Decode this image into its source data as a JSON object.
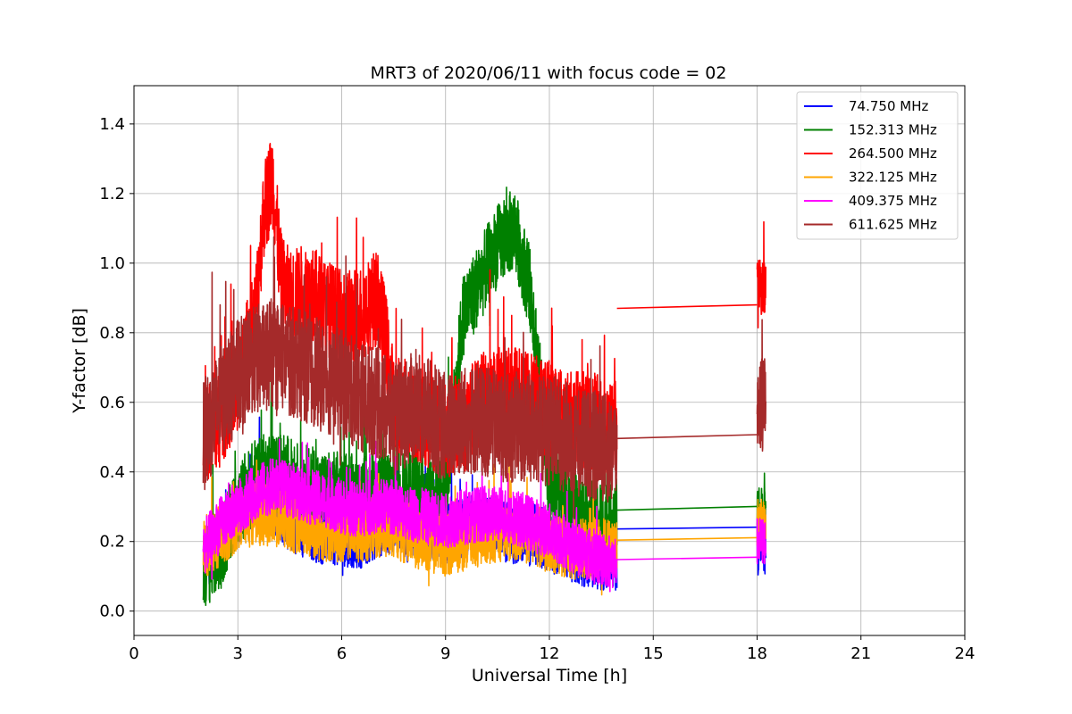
{
  "chart_data": {
    "type": "line",
    "title": "MRT3 of 2020/06/11 with focus code = 02",
    "xlabel": "Universal Time [h]",
    "ylabel": "Y-factor [dB]",
    "xlim": [
      0,
      24
    ],
    "ylim": [
      -0.07,
      1.51
    ],
    "xticks": [
      0,
      3,
      6,
      9,
      12,
      15,
      18,
      21,
      24
    ],
    "yticks": [
      0.0,
      0.2,
      0.4,
      0.6,
      0.8,
      1.0,
      1.2,
      1.4
    ],
    "xtick_labels": [
      "0",
      "3",
      "6",
      "9",
      "12",
      "15",
      "18",
      "21",
      "24"
    ],
    "ytick_labels": [
      "0.0",
      "0.2",
      "0.4",
      "0.6",
      "0.8",
      "1.0",
      "1.2",
      "1.4"
    ],
    "grid": true,
    "legend_position": "top-right",
    "series": [
      {
        "name": " 74.750 MHz",
        "color": "#0000ff",
        "segments": [
          {
            "x_start": 2.0,
            "x_end": 13.95,
            "points": [
              [
                2.0,
                0.15
              ],
              [
                2.5,
                0.2
              ],
              [
                3,
                0.28
              ],
              [
                3.5,
                0.34
              ],
              [
                4,
                0.31
              ],
              [
                4.5,
                0.26
              ],
              [
                5,
                0.24
              ],
              [
                5.5,
                0.22
              ],
              [
                6,
                0.22
              ],
              [
                6.5,
                0.21
              ],
              [
                7,
                0.24
              ],
              [
                7.5,
                0.26
              ],
              [
                8,
                0.25
              ],
              [
                8.5,
                0.23
              ],
              [
                9,
                0.22
              ],
              [
                9.5,
                0.24
              ],
              [
                10,
                0.25
              ],
              [
                10.5,
                0.24
              ],
              [
                11,
                0.22
              ],
              [
                11.5,
                0.22
              ],
              [
                12,
                0.2
              ],
              [
                12.5,
                0.18
              ],
              [
                13,
                0.16
              ],
              [
                13.5,
                0.15
              ],
              [
                13.95,
                0.15
              ]
            ],
            "noise": 0.09
          },
          {
            "x_start": 13.95,
            "x_end": 18.0,
            "points": [
              [
                13.95,
                0.236
              ],
              [
                18.0,
                0.241
              ]
            ],
            "noise": 0
          },
          {
            "x_start": 18.0,
            "x_end": 18.25,
            "points": [
              [
                18.0,
                0.2
              ],
              [
                18.25,
                0.2
              ]
            ],
            "noise": 0.1
          }
        ]
      },
      {
        "name": "152.313 MHz",
        "color": "#008000",
        "segments": [
          {
            "x_start": 2.0,
            "x_end": 13.95,
            "points": [
              [
                2.0,
                0.12
              ],
              [
                2.5,
                0.18
              ],
              [
                3,
                0.3
              ],
              [
                3.5,
                0.38
              ],
              [
                4,
                0.4
              ],
              [
                4.5,
                0.38
              ],
              [
                5,
                0.36
              ],
              [
                5.5,
                0.34
              ],
              [
                6,
                0.34
              ],
              [
                6.5,
                0.33
              ],
              [
                7,
                0.35
              ],
              [
                7.5,
                0.36
              ],
              [
                8,
                0.35
              ],
              [
                8.5,
                0.34
              ],
              [
                9,
                0.33
              ],
              [
                9.5,
                0.85
              ],
              [
                10,
                0.95
              ],
              [
                10.5,
                1.05
              ],
              [
                11,
                1.1
              ],
              [
                11.5,
                0.9
              ],
              [
                12,
                0.36
              ],
              [
                12.5,
                0.3
              ],
              [
                13,
                0.27
              ],
              [
                13.5,
                0.26
              ],
              [
                13.95,
                0.26
              ]
            ],
            "noise": 0.12
          },
          {
            "x_start": 13.95,
            "x_end": 18.0,
            "points": [
              [
                13.95,
                0.29
              ],
              [
                18.0,
                0.301
              ]
            ],
            "noise": 0
          },
          {
            "x_start": 18.0,
            "x_end": 18.25,
            "points": [
              [
                18.0,
                0.28
              ],
              [
                18.25,
                0.28
              ]
            ],
            "noise": 0.08
          }
        ]
      },
      {
        "name": "264.500 MHz",
        "color": "#ff0000",
        "segments": [
          {
            "x_start": 2.0,
            "x_end": 13.95,
            "points": [
              [
                2.0,
                0.5
              ],
              [
                2.5,
                0.55
              ],
              [
                3,
                0.65
              ],
              [
                3.5,
                0.85
              ],
              [
                3.75,
                1.15
              ],
              [
                4,
                1.25
              ],
              [
                4.25,
                0.95
              ],
              [
                4.5,
                0.9
              ],
              [
                5,
                0.92
              ],
              [
                5.5,
                0.88
              ],
              [
                6,
                0.84
              ],
              [
                6.5,
                0.85
              ],
              [
                7,
                0.9
              ],
              [
                7.25,
                0.8
              ],
              [
                7.5,
                0.6
              ],
              [
                8,
                0.58
              ],
              [
                8.5,
                0.55
              ],
              [
                9,
                0.52
              ],
              [
                9.5,
                0.55
              ],
              [
                10,
                0.6
              ],
              [
                10.5,
                0.62
              ],
              [
                11,
                0.62
              ],
              [
                11.5,
                0.6
              ],
              [
                12,
                0.58
              ],
              [
                12.5,
                0.55
              ],
              [
                13,
                0.55
              ],
              [
                13.5,
                0.54
              ],
              [
                13.95,
                0.52
              ]
            ],
            "noise": 0.14
          },
          {
            "x_start": 13.95,
            "x_end": 18.0,
            "points": [
              [
                13.95,
                0.87
              ],
              [
                18.0,
                0.88
              ]
            ],
            "noise": 0
          },
          {
            "x_start": 18.0,
            "x_end": 18.25,
            "points": [
              [
                18.0,
                0.93
              ],
              [
                18.25,
                0.93
              ]
            ],
            "noise": 0.08
          }
        ]
      },
      {
        "name": "322.125 MHz",
        "color": "#ffa500",
        "segments": [
          {
            "x_start": 2.0,
            "x_end": 13.95,
            "points": [
              [
                2.0,
                0.18
              ],
              [
                2.5,
                0.22
              ],
              [
                3,
                0.26
              ],
              [
                3.5,
                0.28
              ],
              [
                4,
                0.27
              ],
              [
                4.5,
                0.26
              ],
              [
                5,
                0.24
              ],
              [
                5.5,
                0.23
              ],
              [
                6,
                0.23
              ],
              [
                6.5,
                0.23
              ],
              [
                7,
                0.24
              ],
              [
                7.5,
                0.24
              ],
              [
                8,
                0.22
              ],
              [
                8.5,
                0.2
              ],
              [
                9,
                0.19
              ],
              [
                9.5,
                0.2
              ],
              [
                10,
                0.22
              ],
              [
                10.5,
                0.23
              ],
              [
                11,
                0.23
              ],
              [
                11.5,
                0.22
              ],
              [
                12,
                0.2
              ],
              [
                12.5,
                0.18
              ],
              [
                13,
                0.18
              ],
              [
                13.5,
                0.18
              ],
              [
                13.95,
                0.18
              ]
            ],
            "noise": 0.09
          },
          {
            "x_start": 13.95,
            "x_end": 18.0,
            "points": [
              [
                13.95,
                0.204
              ],
              [
                18.0,
                0.211
              ]
            ],
            "noise": 0
          },
          {
            "x_start": 18.0,
            "x_end": 18.25,
            "points": [
              [
                18.0,
                0.25
              ],
              [
                18.25,
                0.25
              ]
            ],
            "noise": 0.08
          }
        ]
      },
      {
        "name": "409.375 MHz",
        "color": "#ff00ff",
        "segments": [
          {
            "x_start": 2.0,
            "x_end": 13.95,
            "points": [
              [
                2.0,
                0.18
              ],
              [
                2.5,
                0.25
              ],
              [
                3,
                0.3
              ],
              [
                3.5,
                0.34
              ],
              [
                4,
                0.36
              ],
              [
                4.5,
                0.35
              ],
              [
                5,
                0.33
              ],
              [
                5.5,
                0.32
              ],
              [
                6,
                0.3
              ],
              [
                6.5,
                0.29
              ],
              [
                7,
                0.3
              ],
              [
                7.5,
                0.3
              ],
              [
                8,
                0.28
              ],
              [
                8.5,
                0.27
              ],
              [
                9,
                0.26
              ],
              [
                9.5,
                0.27
              ],
              [
                10,
                0.28
              ],
              [
                10.5,
                0.28
              ],
              [
                11,
                0.27
              ],
              [
                11.5,
                0.25
              ],
              [
                12,
                0.23
              ],
              [
                12.5,
                0.2
              ],
              [
                13,
                0.17
              ],
              [
                13.5,
                0.15
              ],
              [
                13.95,
                0.14
              ]
            ],
            "noise": 0.08
          },
          {
            "x_start": 13.95,
            "x_end": 18.0,
            "points": [
              [
                13.95,
                0.148
              ],
              [
                18.0,
                0.155
              ]
            ],
            "noise": 0
          },
          {
            "x_start": 18.0,
            "x_end": 18.25,
            "points": [
              [
                18.0,
                0.2
              ],
              [
                18.25,
                0.2
              ]
            ],
            "noise": 0.07
          }
        ]
      },
      {
        "name": "611.625 MHz",
        "color": "#a52a2a",
        "segments": [
          {
            "x_start": 2.0,
            "x_end": 13.95,
            "points": [
              [
                2.0,
                0.5
              ],
              [
                2.5,
                0.6
              ],
              [
                3,
                0.68
              ],
              [
                3.5,
                0.72
              ],
              [
                4,
                0.74
              ],
              [
                4.5,
                0.72
              ],
              [
                5,
                0.7
              ],
              [
                5.5,
                0.67
              ],
              [
                6,
                0.65
              ],
              [
                6.5,
                0.62
              ],
              [
                7,
                0.6
              ],
              [
                7.5,
                0.55
              ],
              [
                8,
                0.58
              ],
              [
                8.5,
                0.57
              ],
              [
                9,
                0.52
              ],
              [
                9.5,
                0.55
              ],
              [
                10,
                0.55
              ],
              [
                10.5,
                0.53
              ],
              [
                11,
                0.53
              ],
              [
                11.5,
                0.52
              ],
              [
                12,
                0.52
              ],
              [
                12.5,
                0.5
              ],
              [
                13,
                0.48
              ],
              [
                13.5,
                0.47
              ],
              [
                13.95,
                0.46
              ]
            ],
            "noise": 0.16
          },
          {
            "x_start": 13.95,
            "x_end": 18.0,
            "points": [
              [
                13.95,
                0.496
              ],
              [
                18.0,
                0.507
              ]
            ],
            "noise": 0
          },
          {
            "x_start": 18.0,
            "x_end": 18.25,
            "points": [
              [
                18.0,
                0.6
              ],
              [
                18.25,
                0.6
              ]
            ],
            "noise": 0.14
          }
        ]
      }
    ]
  }
}
